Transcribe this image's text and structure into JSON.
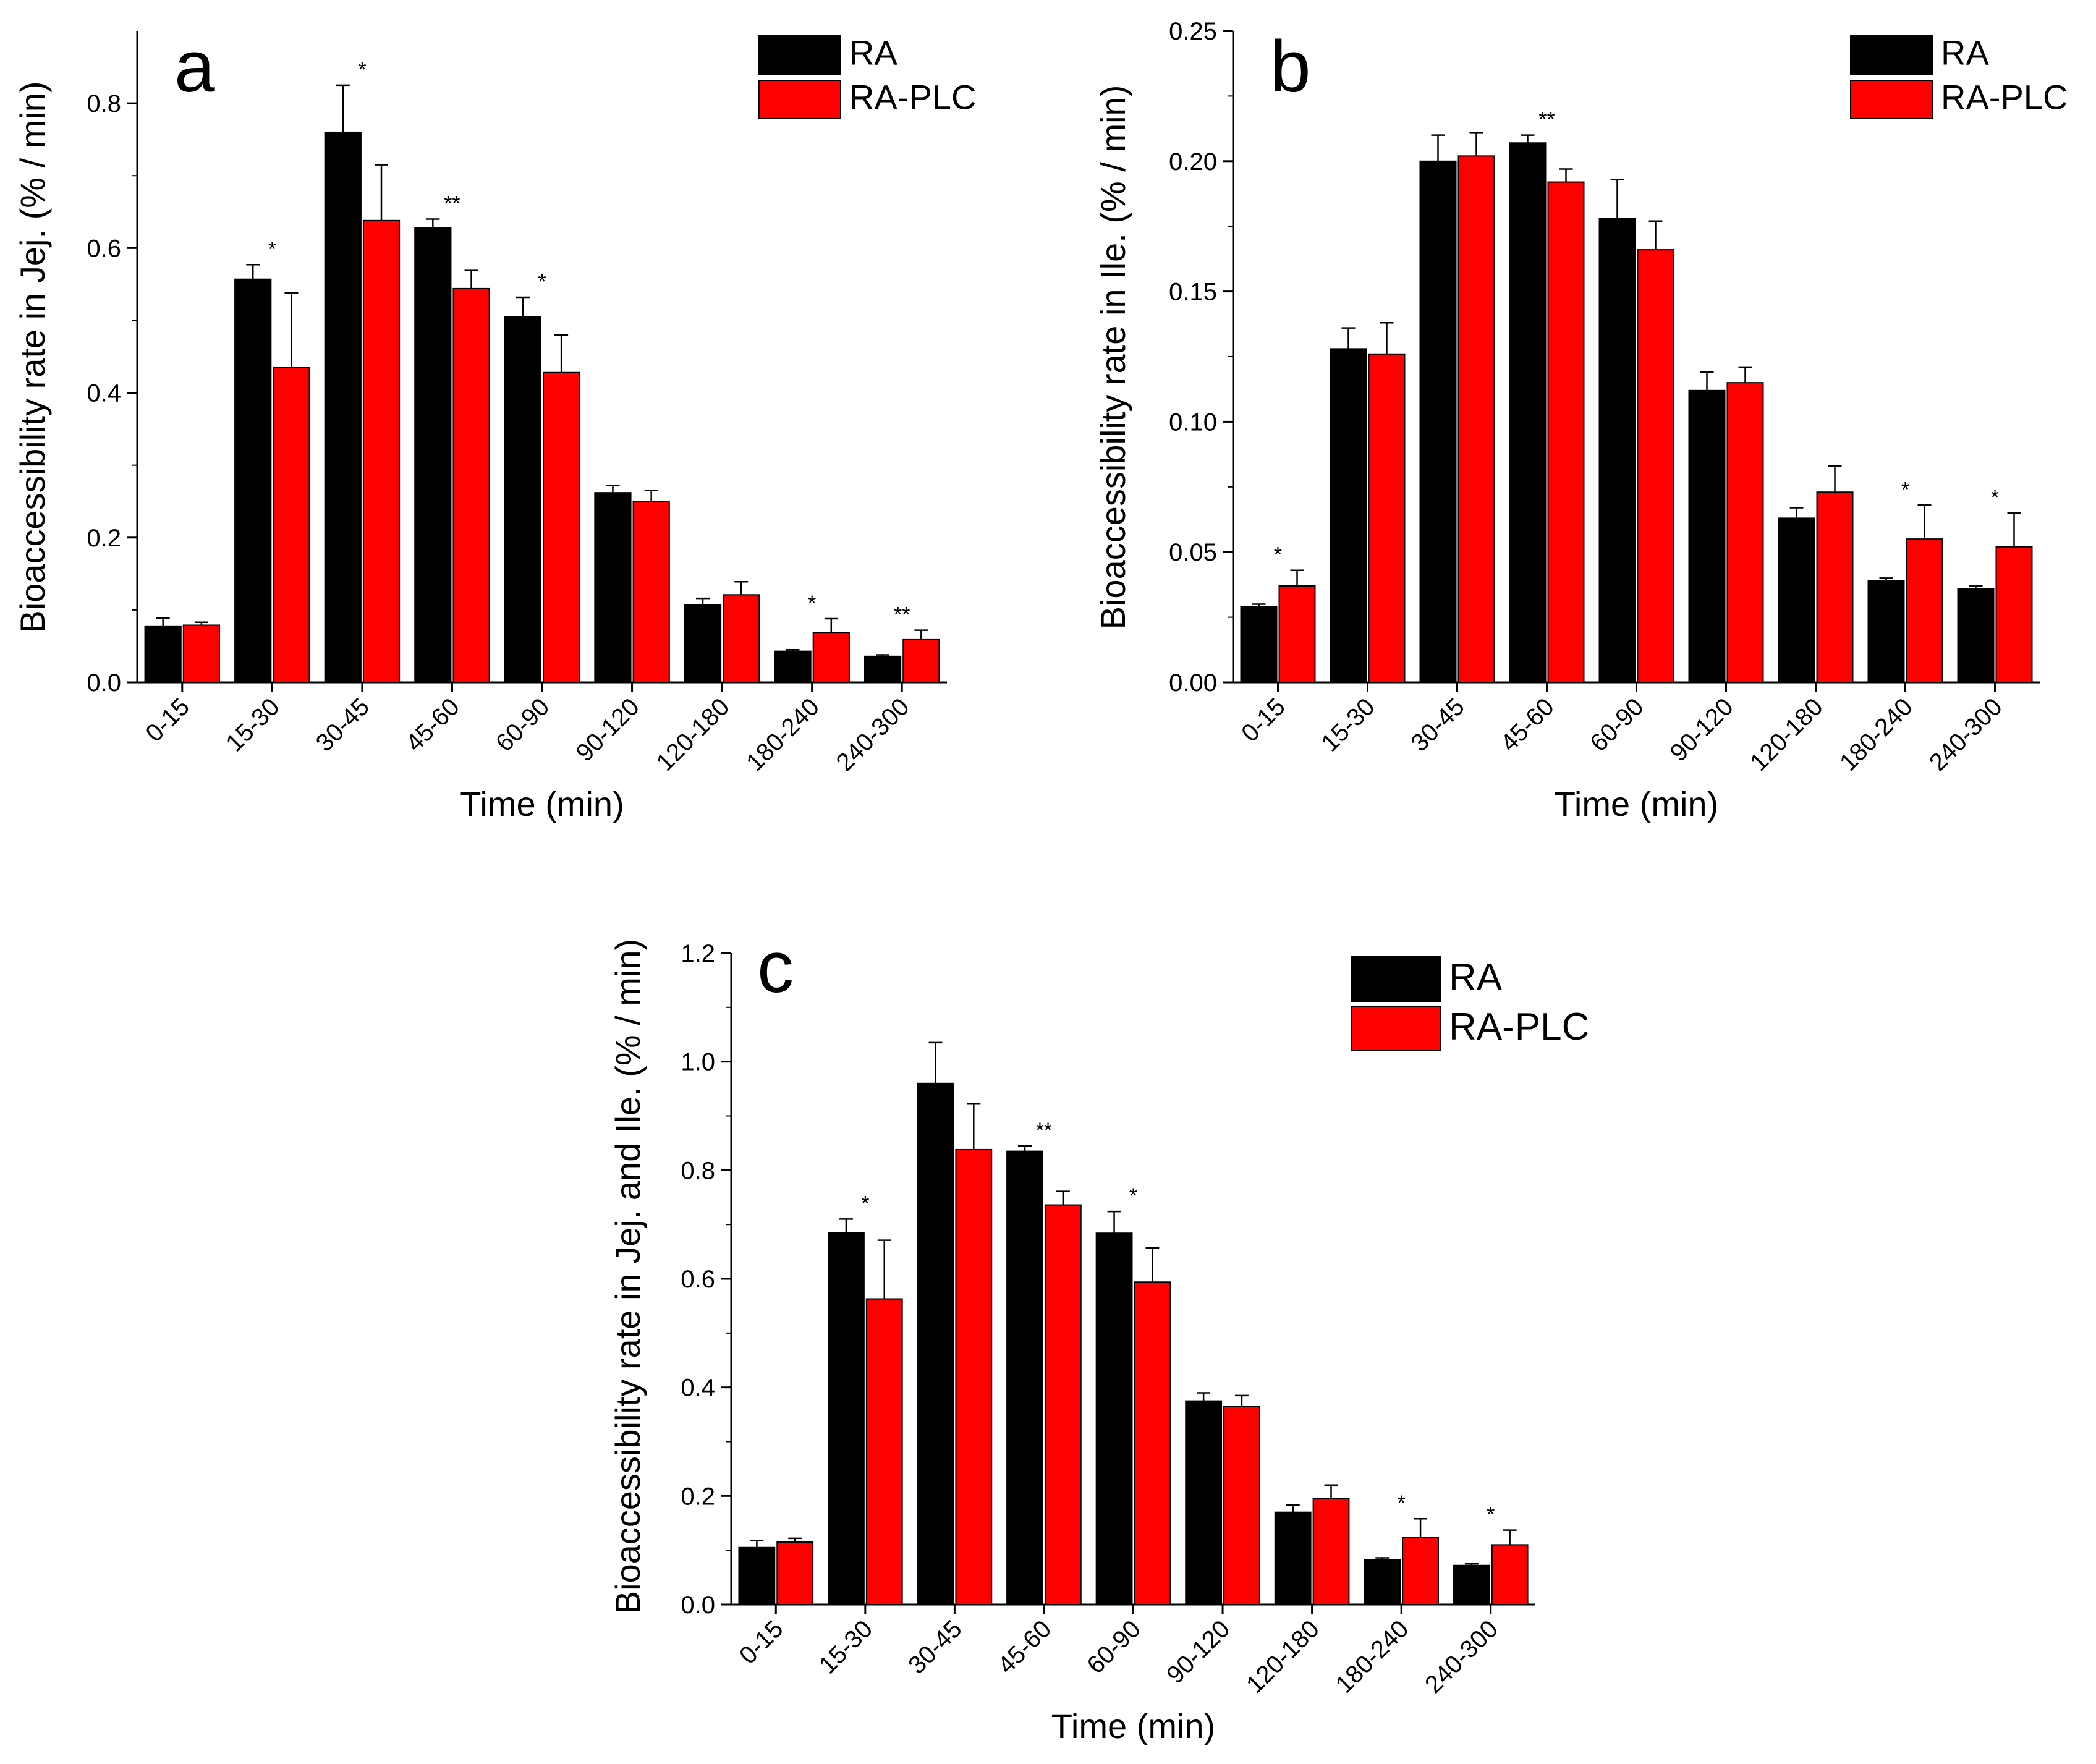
{
  "chart_data": [
    {
      "panel": "a",
      "type": "bar",
      "categories": [
        "0-15",
        "15-30",
        "30-45",
        "45-60",
        "60-90",
        "90-120",
        "120-180",
        "180-240",
        "240-300"
      ],
      "series": [
        {
          "name": "RA",
          "color": "#000000",
          "values": [
            0.077,
            0.557,
            0.76,
            0.628,
            0.505,
            0.262,
            0.107,
            0.043,
            0.036
          ],
          "errors": [
            0.012,
            0.02,
            0.065,
            0.012,
            0.027,
            0.01,
            0.009,
            0.002,
            0.002
          ]
        },
        {
          "name": "RA-PLC",
          "color": "#ff0000",
          "values": [
            0.079,
            0.435,
            0.638,
            0.544,
            0.428,
            0.25,
            0.121,
            0.069,
            0.059
          ],
          "errors": [
            0.004,
            0.103,
            0.077,
            0.025,
            0.052,
            0.015,
            0.018,
            0.019,
            0.013
          ]
        }
      ],
      "significance": [
        "",
        "*",
        "*",
        "**",
        "*",
        "",
        "",
        "*",
        "**"
      ],
      "xlabel": "Time (min)",
      "ylabel": "Bioaccessibility rate in Jej. (% / min)",
      "ylim": [
        0,
        0.9
      ],
      "yticks": [
        0,
        0.2,
        0.4,
        0.6,
        0.8
      ],
      "decimals": 1,
      "legend": "top-right",
      "grid": false
    },
    {
      "panel": "b",
      "type": "bar",
      "categories": [
        "0-15",
        "15-30",
        "30-45",
        "45-60",
        "60-90",
        "90-120",
        "120-180",
        "180-240",
        "240-300"
      ],
      "series": [
        {
          "name": "RA",
          "color": "#000000",
          "values": [
            0.029,
            0.128,
            0.2,
            0.207,
            0.178,
            0.112,
            0.063,
            0.039,
            0.036
          ],
          "errors": [
            0.001,
            0.008,
            0.01,
            0.003,
            0.015,
            0.007,
            0.004,
            0.001,
            0.001
          ]
        },
        {
          "name": "RA-PLC",
          "color": "#ff0000",
          "values": [
            0.037,
            0.126,
            0.202,
            0.192,
            0.166,
            0.115,
            0.073,
            0.055,
            0.052
          ],
          "errors": [
            0.006,
            0.012,
            0.009,
            0.005,
            0.011,
            0.006,
            0.01,
            0.013,
            0.013
          ]
        }
      ],
      "significance": [
        "*",
        "",
        "",
        "**",
        "",
        "",
        "",
        "*",
        "*"
      ],
      "xlabel": "Time (min)",
      "ylabel": "Bioaccessibility rate in Ile. (% / min)",
      "ylim": [
        0,
        0.25
      ],
      "yticks": [
        0,
        0.05,
        0.1,
        0.15,
        0.2,
        0.25
      ],
      "decimals": 2,
      "legend": "top-right",
      "grid": false
    },
    {
      "panel": "c",
      "type": "bar",
      "categories": [
        "0-15",
        "15-30",
        "30-45",
        "45-60",
        "60-90",
        "90-120",
        "120-180",
        "180-240",
        "240-300"
      ],
      "series": [
        {
          "name": "RA",
          "color": "#000000",
          "values": [
            0.105,
            0.685,
            0.96,
            0.835,
            0.684,
            0.375,
            0.17,
            0.083,
            0.072
          ],
          "errors": [
            0.013,
            0.025,
            0.075,
            0.01,
            0.04,
            0.015,
            0.013,
            0.003,
            0.003
          ]
        },
        {
          "name": "RA-PLC",
          "color": "#ff0000",
          "values": [
            0.115,
            0.563,
            0.838,
            0.736,
            0.594,
            0.365,
            0.195,
            0.123,
            0.11
          ],
          "errors": [
            0.007,
            0.108,
            0.085,
            0.025,
            0.063,
            0.02,
            0.025,
            0.035,
            0.027
          ]
        }
      ],
      "significance": [
        "",
        "*",
        "",
        "**",
        "*",
        "",
        "",
        "*",
        "*"
      ],
      "xlabel": "Time (min)",
      "ylabel": "Bioaccessibility rate in Jej. and Ile. (% / min)",
      "ylim": [
        0,
        1.2
      ],
      "yticks": [
        0,
        0.2,
        0.4,
        0.6,
        0.8,
        1.0,
        1.2
      ],
      "decimals": 1,
      "legend": "top-right",
      "grid": false
    }
  ]
}
